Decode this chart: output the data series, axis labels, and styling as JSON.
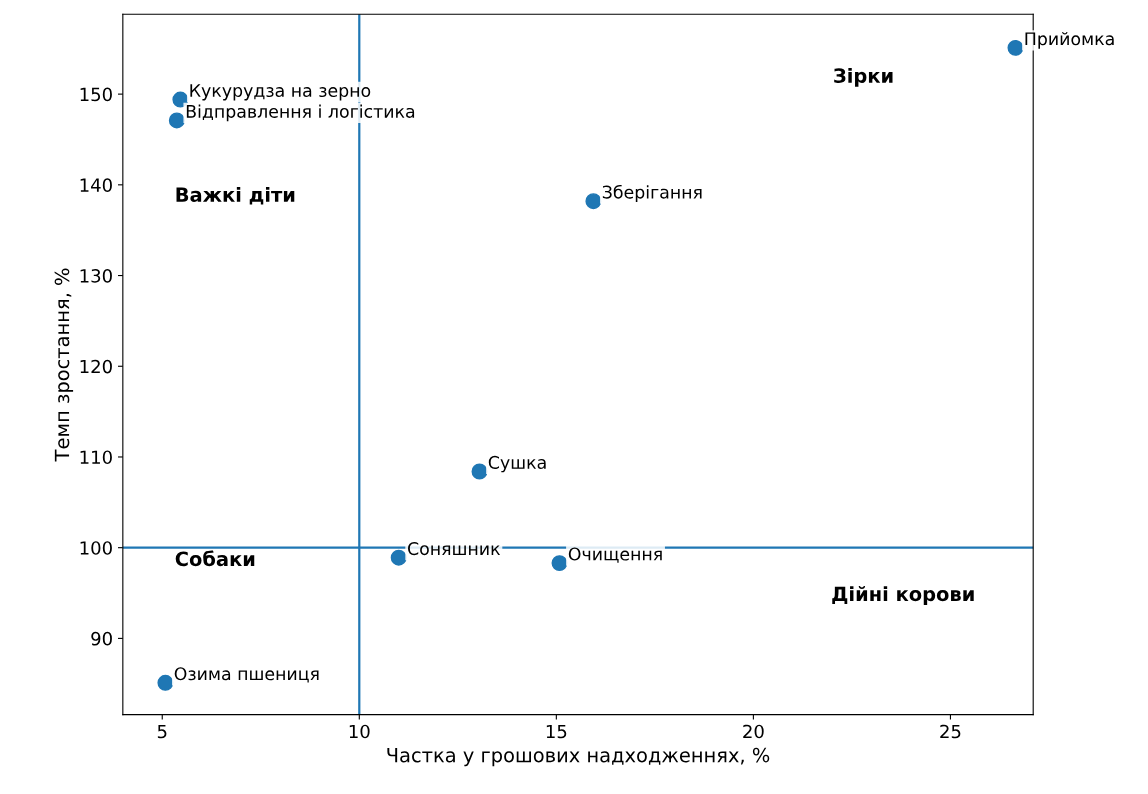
{
  "chart_data": {
    "type": "scatter",
    "xlabel": "Частка у грошових надходженнях, %",
    "ylabel": "Темп зростання, %",
    "series": [
      {
        "color": "#1f77b4",
        "x": [
          5.46,
          5.37,
          15.94,
          26.65,
          13.05,
          11.0,
          15.08,
          5.08
        ],
        "values": [
          149.4,
          147.1,
          138.2,
          155.1,
          108.4,
          98.9,
          98.3,
          85.1
        ]
      }
    ],
    "xlim": [
      4.0,
      27.1
    ],
    "ylim": [
      81.6,
      158.8
    ],
    "xticks": [
      5,
      10,
      15,
      20,
      25
    ],
    "yticks": [
      90,
      100,
      110,
      120,
      130,
      140,
      150
    ],
    "marker": "circle",
    "grid": false,
    "ref_lines": [
      {
        "axis": "x",
        "value": 10,
        "color": "#1f77b4"
      },
      {
        "axis": "y",
        "value": 100,
        "color": "#1f77b4"
      }
    ],
    "annotations": [
      {
        "text": "Кукурудза на зерно",
        "x": 5.46,
        "y": 149.4
      },
      {
        "text": "Відправлення і логістика",
        "x": 5.37,
        "y": 147.1
      },
      {
        "text": "Зберігання",
        "x": 15.94,
        "y": 138.2
      },
      {
        "text": "Прийомка",
        "x": 26.65,
        "y": 155.1
      },
      {
        "text": "Сушка",
        "x": 13.05,
        "y": 108.4
      },
      {
        "text": "Соняшник",
        "x": 11.0,
        "y": 98.9
      },
      {
        "text": "Очищення",
        "x": 15.08,
        "y": 98.3
      },
      {
        "text": "Озима пшениця",
        "x": 5.08,
        "y": 85.1
      },
      "Зірки",
      "Важкі діти",
      "Собаки",
      "Дійні корови"
    ]
  }
}
